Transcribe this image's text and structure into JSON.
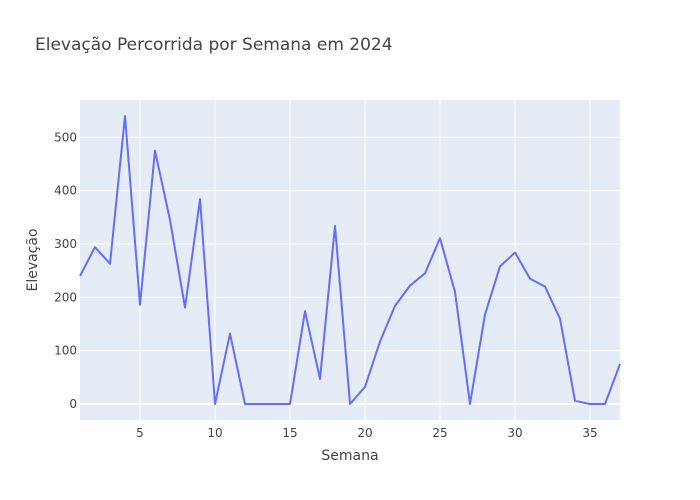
{
  "chart_data": {
    "type": "line",
    "title": "Elevação Percorrida por Semana em 2024",
    "xlabel": "Semana",
    "ylabel": "Elevação",
    "xlim": [
      1,
      37
    ],
    "ylim": [
      -30,
      570
    ],
    "xticks": [
      5,
      10,
      15,
      20,
      25,
      30,
      35
    ],
    "yticks": [
      0,
      100,
      200,
      300,
      400,
      500
    ],
    "grid": true,
    "colors": {
      "line": "#636efa",
      "plot_bg": "#e5ecf6",
      "grid": "#ffffff"
    },
    "series": [
      {
        "x": [
          1,
          2,
          3,
          4,
          5,
          6,
          7,
          8,
          9,
          10,
          11,
          12,
          13,
          14,
          15,
          16,
          17,
          18,
          19,
          20,
          21,
          22,
          23,
          24,
          25,
          26,
          27,
          28,
          29,
          30,
          31,
          32,
          33,
          34,
          35,
          36,
          37
        ],
        "values": [
          240,
          294,
          263,
          540,
          186,
          475,
          345,
          181,
          384,
          0,
          132,
          0,
          0,
          0,
          0,
          174,
          47,
          334,
          0,
          32,
          117,
          184,
          222,
          245,
          311,
          210,
          0,
          168,
          258,
          284,
          235,
          220,
          160,
          6,
          0,
          0,
          75
        ]
      }
    ]
  }
}
